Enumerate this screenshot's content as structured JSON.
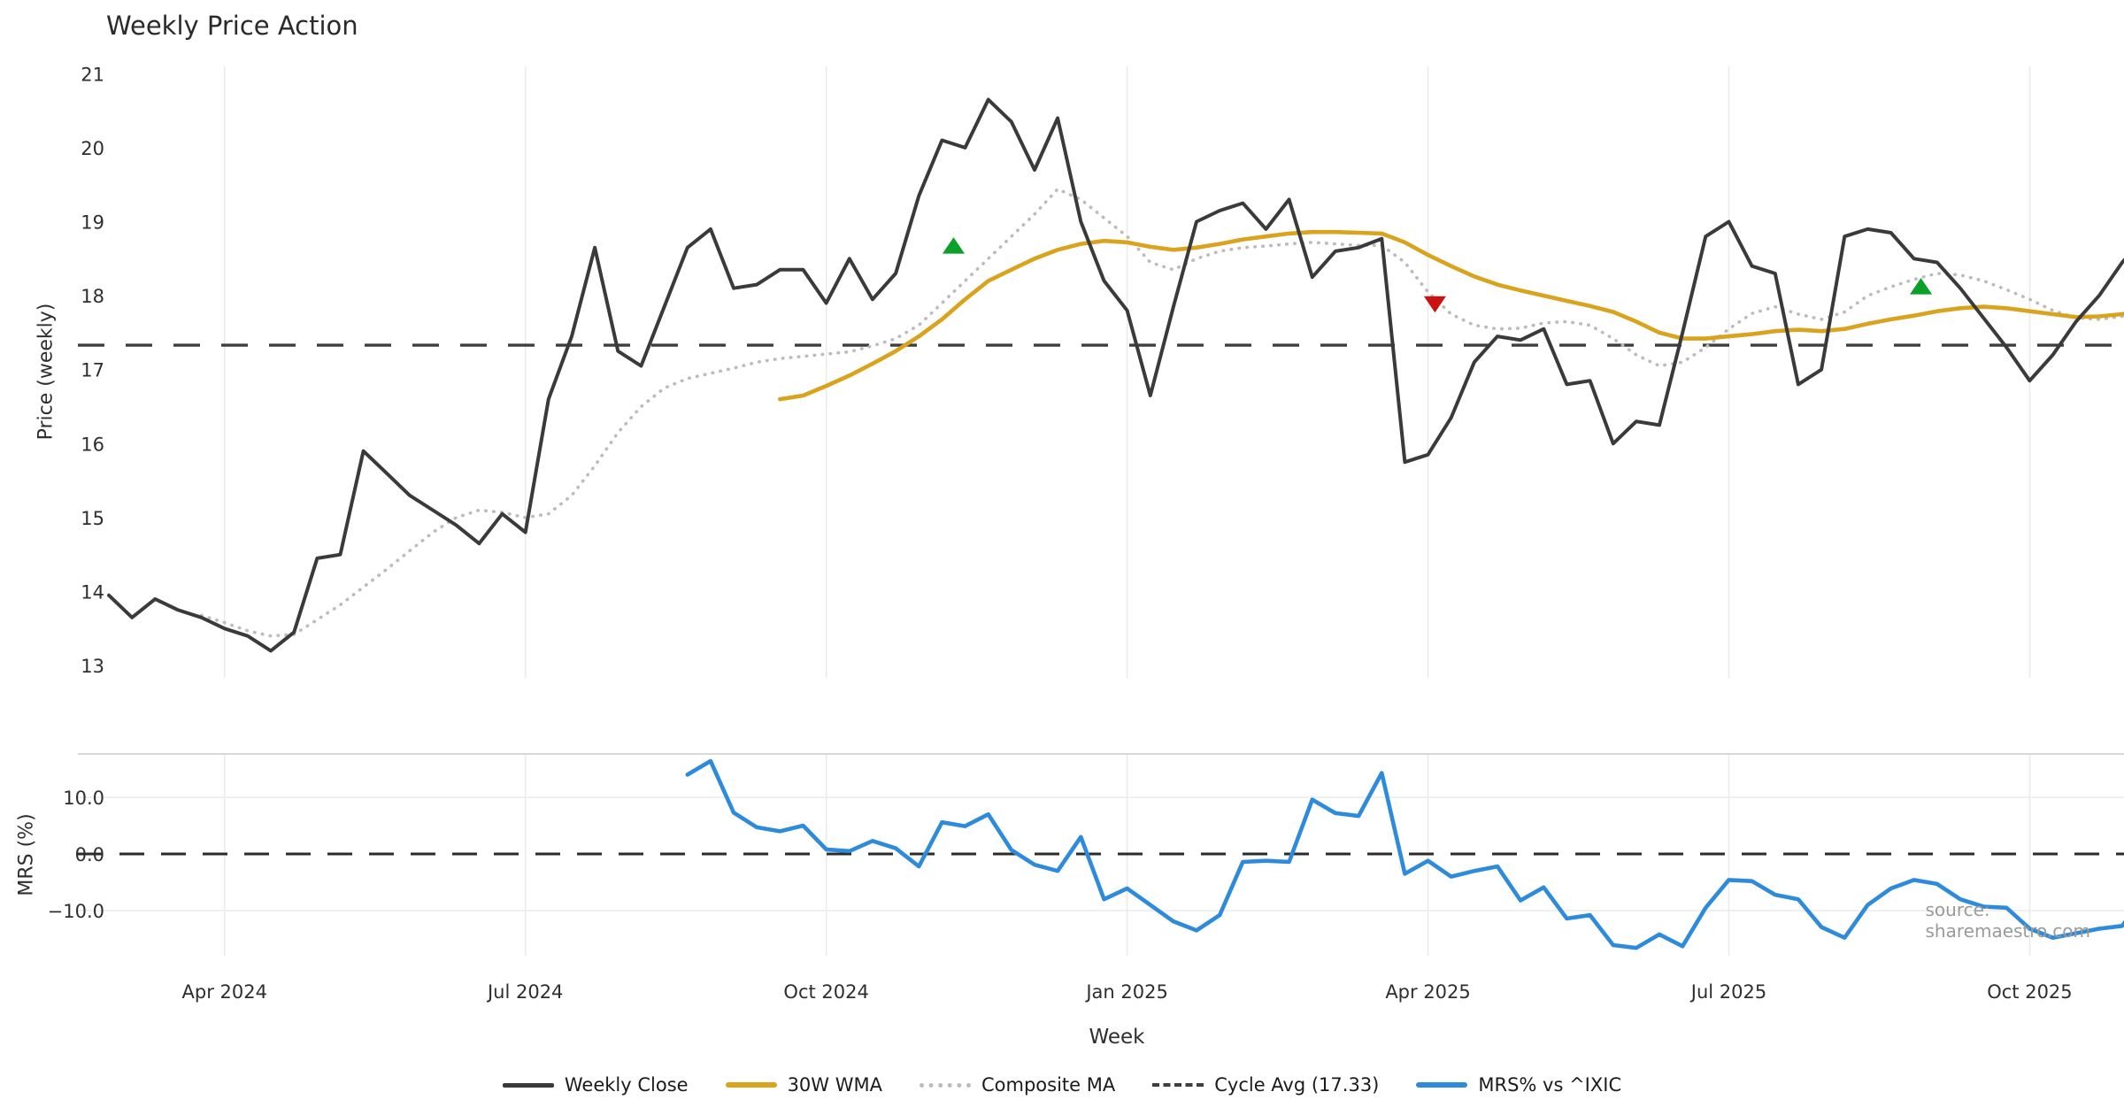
{
  "title": "Weekly Price Action",
  "source_note": "source: sharemaestro.com",
  "axes": {
    "price_axis_label": "Price (weekly)",
    "mrs_axis_label": "MRS (%)",
    "x_axis_label": "Week",
    "price_ticks": [
      "21",
      "20",
      "19",
      "18",
      "17",
      "16",
      "15",
      "14",
      "13"
    ],
    "mrs_ticks": [
      "10.0",
      "0.0",
      "−10.0"
    ],
    "x_ticks": [
      "Apr 2024",
      "Jul 2024",
      "Oct 2024",
      "Jan 2025",
      "Apr 2025",
      "Jul 2025",
      "Oct 2025"
    ]
  },
  "colors": {
    "weekly_close": "#3a3a3a",
    "wma_30w": "#d9a31e",
    "composite_ma": "#bcbcbc",
    "cycle_avg": "#3d3d3d",
    "mrs_line": "#2e8bdc",
    "buy_marker": "#0aa02a",
    "sell_marker": "#cb1212",
    "grid": "#ebebeb",
    "panel_border": "#d8d8d8"
  },
  "legend": {
    "items": [
      {
        "label": "Weekly Close",
        "style": "solid-dark"
      },
      {
        "label": "30W WMA",
        "style": "solid-gold"
      },
      {
        "label": "Composite MA",
        "style": "dotted"
      },
      {
        "label": "Cycle Avg (17.33)",
        "style": "dashed"
      },
      {
        "label": "MRS% vs ^IXIC",
        "style": "solid-blue"
      }
    ]
  },
  "chart_data": [
    {
      "panel": "price",
      "type": "line",
      "title": "Weekly Price Action",
      "ylabel": "Price (weekly)",
      "xlabel": "Week",
      "ylim": [
        12.8,
        21.1
      ],
      "yticks": [
        21,
        20,
        19,
        18,
        17,
        16,
        15,
        14,
        13
      ],
      "grid": "vertical-only",
      "cycle_avg": 17.33,
      "x_tick_weeks": [
        5,
        18,
        31,
        44,
        57,
        70,
        83
      ],
      "x_tick_labels": [
        "Apr 2024",
        "Jul 2024",
        "Oct 2024",
        "Jan 2025",
        "Apr 2025",
        "Jul 2025",
        "Oct 2025"
      ],
      "series": [
        {
          "name": "Weekly Close",
          "style": "solid",
          "width": 4,
          "start_week": 0,
          "values": [
            13.95,
            13.65,
            13.9,
            13.75,
            13.65,
            13.5,
            13.4,
            13.2,
            13.45,
            14.45,
            14.5,
            15.9,
            15.6,
            15.3,
            15.1,
            14.9,
            14.65,
            15.05,
            14.8,
            16.6,
            17.45,
            18.65,
            17.25,
            17.05,
            17.85,
            18.65,
            18.9,
            18.1,
            18.15,
            18.35,
            18.35,
            17.9,
            18.5,
            17.95,
            18.3,
            19.35,
            20.1,
            20.0,
            20.65,
            20.35,
            19.7,
            20.4,
            19.0,
            18.2,
            17.8,
            16.65,
            17.85,
            19.0,
            19.15,
            19.25,
            18.9,
            19.3,
            18.25,
            18.6,
            18.65,
            18.77,
            15.75,
            15.85,
            16.35,
            17.1,
            17.45,
            17.4,
            17.55,
            16.8,
            16.85,
            16.0,
            16.3,
            16.25,
            17.5,
            18.8,
            19.0,
            18.4,
            18.3,
            16.8,
            17.0,
            18.8,
            18.9,
            18.85,
            18.5,
            18.45,
            18.1,
            17.7,
            17.3,
            16.85,
            17.2,
            17.65,
            18.0,
            18.45,
            18.8
          ]
        },
        {
          "name": "30W WMA",
          "style": "solid",
          "width": 4.6,
          "start_week": 29,
          "values": [
            16.6,
            16.65,
            16.78,
            16.92,
            17.08,
            17.25,
            17.45,
            17.68,
            17.95,
            18.2,
            18.35,
            18.5,
            18.62,
            18.7,
            18.74,
            18.72,
            18.66,
            18.62,
            18.65,
            18.7,
            18.76,
            18.8,
            18.84,
            18.86,
            18.86,
            18.85,
            18.84,
            18.72,
            18.55,
            18.4,
            18.26,
            18.15,
            18.07,
            18.0,
            17.93,
            17.86,
            17.78,
            17.65,
            17.5,
            17.42,
            17.42,
            17.45,
            17.48,
            17.52,
            17.54,
            17.52,
            17.55,
            17.62,
            17.68,
            17.73,
            17.79,
            17.83,
            17.85,
            17.83,
            17.79,
            17.75,
            17.71,
            17.72,
            17.75,
            17.79
          ]
        },
        {
          "name": "Composite MA",
          "style": "dotted",
          "width": 3.6,
          "start_week": 4,
          "values": [
            13.68,
            13.58,
            13.47,
            13.4,
            13.42,
            13.62,
            13.82,
            14.06,
            14.3,
            14.55,
            14.8,
            15.0,
            15.1,
            15.07,
            15.0,
            15.05,
            15.3,
            15.7,
            16.15,
            16.5,
            16.75,
            16.88,
            16.95,
            17.02,
            17.1,
            17.15,
            17.18,
            17.21,
            17.24,
            17.32,
            17.42,
            17.6,
            17.9,
            18.2,
            18.5,
            18.8,
            19.1,
            19.44,
            19.3,
            19.05,
            18.8,
            18.45,
            18.35,
            18.5,
            18.6,
            18.65,
            18.67,
            18.7,
            18.72,
            18.7,
            18.68,
            18.68,
            18.45,
            18.05,
            17.75,
            17.6,
            17.55,
            17.56,
            17.63,
            17.65,
            17.6,
            17.42,
            17.2,
            17.05,
            17.1,
            17.3,
            17.55,
            17.76,
            17.85,
            17.75,
            17.68,
            17.78,
            18.0,
            18.12,
            18.22,
            18.3,
            18.28,
            18.2,
            18.08,
            17.95,
            17.8,
            17.7,
            17.68,
            17.72,
            17.85
          ]
        }
      ],
      "markers": [
        {
          "shape": "triangle-up",
          "week": 36.5,
          "value": 18.67
        },
        {
          "shape": "triangle-down",
          "week": 57.3,
          "value": 17.89
        },
        {
          "shape": "triangle-up",
          "week": 78.3,
          "value": 18.12
        }
      ]
    },
    {
      "panel": "mrs",
      "type": "line",
      "ylabel": "MRS (%)",
      "ylim": [
        -18,
        17.6
      ],
      "yticks": [
        10,
        0,
        -10
      ],
      "zero_line": 0,
      "series": [
        {
          "name": "MRS% vs ^IXIC",
          "style": "solid",
          "width": 4.6,
          "start_week": 25,
          "values": [
            14.0,
            16.4,
            7.3,
            4.7,
            4.0,
            5.0,
            0.8,
            0.5,
            2.3,
            1.0,
            -2.2,
            5.6,
            4.9,
            7.0,
            0.7,
            -1.9,
            -3.0,
            3.0,
            -8.0,
            -6.1,
            -9.0,
            -11.9,
            -13.5,
            -10.8,
            -1.4,
            -1.2,
            -1.4,
            9.6,
            7.2,
            6.7,
            14.3,
            -3.5,
            -1.2,
            -4.0,
            -3.0,
            -2.2,
            -8.2,
            -5.9,
            -11.4,
            -10.8,
            -16.1,
            -16.6,
            -14.2,
            -16.3,
            -9.5,
            -4.6,
            -4.8,
            -7.2,
            -8.0,
            -12.9,
            -14.8,
            -9.0,
            -6.1,
            -4.6,
            -5.3,
            -8.0,
            -9.3,
            -9.5,
            -13.2,
            -14.8,
            -14.0,
            -13.2,
            -12.7,
            -7.2
          ]
        }
      ]
    }
  ]
}
